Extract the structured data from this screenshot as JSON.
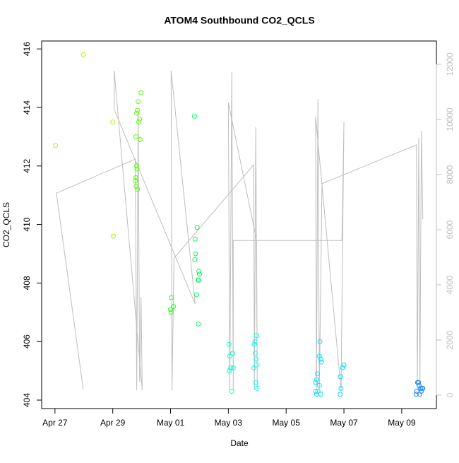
{
  "chart_data": {
    "type": "scatter",
    "title": "ATOM4 Southbound CO2_QCLS",
    "x_label": "Date",
    "y_label": "CO2_QCLS",
    "xlim": [
      -0.46,
      13.2
    ],
    "xticks": [
      {
        "value": 0,
        "label": "Apr 27"
      },
      {
        "value": 2,
        "label": "Apr 29"
      },
      {
        "value": 4,
        "label": "May 01"
      },
      {
        "value": 6,
        "label": "May 03"
      },
      {
        "value": 8,
        "label": "May 05"
      },
      {
        "value": 10,
        "label": "May 07"
      },
      {
        "value": 12,
        "label": "May 09"
      }
    ],
    "ylim": [
      403.71,
      416.27
    ],
    "yticks": [
      404,
      406,
      408,
      410,
      412,
      414,
      416
    ],
    "y2lim": [
      -487,
      12846
    ],
    "y2ticks": [
      0,
      2000,
      4000,
      6000,
      8000,
      10000,
      12000
    ],
    "y2_color": "#bebebe",
    "series": [
      {
        "type": "line",
        "axis": "y2",
        "color": "#bebebe",
        "x": [
          0.98,
          0.05,
          2.78,
          2.83,
          2.88,
          2.93,
          2.98,
          3.02,
          2.05,
          2.05,
          4.85,
          4.02,
          4.05,
          4.12,
          6.88,
          6.9,
          6.95,
          7.0,
          6.98,
          6.0,
          6.05,
          6.12,
          6.17,
          6.17,
          9.93,
          9.95,
          10.0,
          9.9,
          9.02,
          9.05,
          9.1,
          9.15,
          9.24,
          12.51,
          12.54,
          12.59,
          12.63,
          12.68,
          12.73
        ],
        "values": [
          200,
          7330,
          8560,
          180,
          10230,
          490,
          3560,
          180,
          11770,
          10360,
          3310,
          11770,
          180,
          4970,
          8360,
          180,
          9720,
          230,
          5610,
          10610,
          180,
          11720,
          180,
          5610,
          5610,
          6640,
          9920,
          180,
          10100,
          180,
          10740,
          180,
          7670,
          9080,
          180,
          9330,
          180,
          9590,
          6380
        ]
      },
      {
        "type": "scatter",
        "color": "#99ff00",
        "x": [
          0.02,
          0.98,
          2.0,
          2.02
        ],
        "values": [
          412.7,
          415.8,
          413.5,
          409.6
        ]
      },
      {
        "type": "scatter",
        "color": "#55ff00",
        "x": [
          2.85,
          2.88,
          2.98,
          2.83,
          2.9,
          2.93,
          2.8,
          2.95,
          2.82,
          2.84,
          2.8,
          2.78,
          2.81,
          2.86
        ],
        "values": [
          413.9,
          414.2,
          414.5,
          413.8,
          413.5,
          413.6,
          413.0,
          412.9,
          412.0,
          411.9,
          411.6,
          411.5,
          411.3,
          411.2
        ]
      },
      {
        "type": "scatter",
        "color": "#22ff22",
        "x": [
          4.03,
          4.0,
          4.02,
          4.1
        ],
        "values": [
          407.5,
          407.1,
          407.0,
          407.2
        ]
      },
      {
        "type": "scatter",
        "color": "#00ff55",
        "x": [
          4.83,
          4.92,
          4.85,
          4.87,
          4.84,
          4.98,
          5.0,
          4.95,
          4.97,
          4.9,
          4.96
        ],
        "values": [
          413.7,
          409.9,
          409.5,
          409.0,
          408.8,
          408.4,
          408.3,
          408.1,
          408.1,
          407.6,
          406.6
        ]
      },
      {
        "type": "scatter",
        "color": "#00ffcc",
        "x": [
          6.02,
          6.05,
          6.15,
          6.08,
          6.03,
          6.17,
          6.12
        ],
        "values": [
          405.9,
          405.5,
          405.6,
          405.1,
          405.0,
          405.1,
          404.3
        ]
      },
      {
        "type": "scatter",
        "color": "#00ffee",
        "x": [
          6.98,
          6.92,
          6.9,
          6.93,
          6.96,
          6.88,
          6.97,
          6.95,
          6.99
        ],
        "values": [
          406.2,
          406.0,
          405.9,
          405.6,
          405.4,
          405.1,
          405.2,
          404.6,
          404.4
        ]
      },
      {
        "type": "scatter",
        "color": "#00e5ff",
        "x": [
          9.08,
          9.02,
          9.05,
          9.1,
          9.05,
          9.02,
          9.15,
          9.15,
          9.22,
          9.17,
          9.2,
          9.2
        ],
        "values": [
          404.9,
          404.6,
          404.7,
          404.3,
          404.2,
          404.3,
          404.5,
          405.5,
          405.3,
          406.0,
          405.4,
          404.2
        ]
      },
      {
        "type": "scatter",
        "color": "#00d5ff",
        "x": [
          10.0,
          9.95,
          9.88,
          9.9,
          9.87
        ],
        "values": [
          405.2,
          405.1,
          404.8,
          404.4,
          404.2
        ]
      },
      {
        "type": "scatter",
        "color": "#2288ff",
        "x": [
          12.55,
          12.58,
          12.6,
          12.65,
          12.52,
          12.7,
          12.62,
          12.68,
          12.5,
          12.73
        ],
        "values": [
          404.6,
          404.6,
          404.5,
          404.4,
          404.3,
          404.4,
          404.2,
          404.3,
          404.2,
          404.4
        ]
      }
    ]
  }
}
